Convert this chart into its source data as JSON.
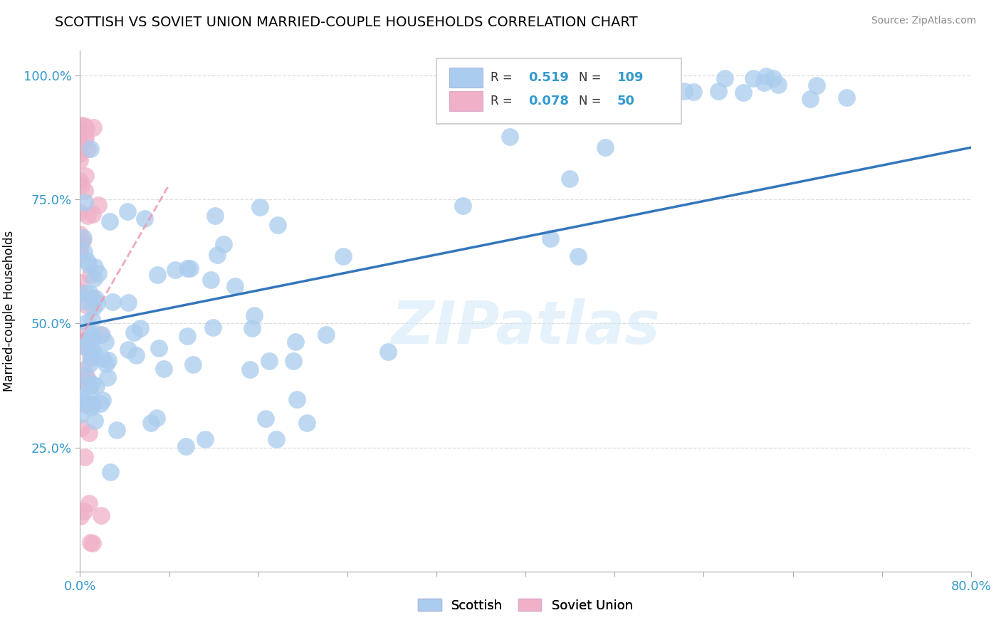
{
  "title": "SCOTTISH VS SOVIET UNION MARRIED-COUPLE HOUSEHOLDS CORRELATION CHART",
  "source": "Source: ZipAtlas.com",
  "ylabel": "Married-couple Households",
  "xlim": [
    0.0,
    0.8
  ],
  "ylim": [
    0.0,
    1.05
  ],
  "xtick_vals": [
    0.0,
    0.08,
    0.16,
    0.24,
    0.32,
    0.4,
    0.48,
    0.56,
    0.64,
    0.72,
    0.8
  ],
  "xtick_labels": [
    "0.0%",
    "",
    "",
    "",
    "",
    "",
    "",
    "",
    "",
    "",
    "80.0%"
  ],
  "ytick_vals": [
    0.0,
    0.25,
    0.5,
    0.75,
    1.0
  ],
  "ytick_labels": [
    "",
    "25.0%",
    "50.0%",
    "75.0%",
    "100.0%"
  ],
  "scottish_R": 0.519,
  "scottish_N": 109,
  "soviet_R": 0.078,
  "soviet_N": 50,
  "scottish_color": "#aaccee",
  "soviet_color": "#f0b0c8",
  "trendline_scottish_color": "#3377bb",
  "trendline_soviet_color": "#ee9aaa",
  "watermark": "ZIPatlas",
  "scot_trend_x0": 0.0,
  "scot_trend_y0": 0.495,
  "scot_trend_x1": 0.8,
  "scot_trend_y1": 0.855,
  "sov_trend_x0": 0.0,
  "sov_trend_y0": 0.47,
  "sov_trend_x1": 0.08,
  "sov_trend_y1": 0.78
}
